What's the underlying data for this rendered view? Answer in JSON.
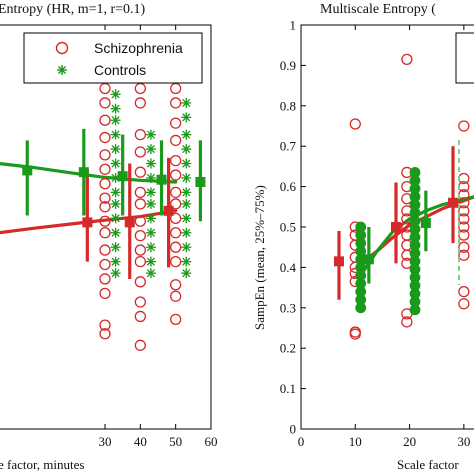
{
  "colors": {
    "schizophrenia": "#d62a2a",
    "controls": "#1a9a1a",
    "axis": "#000000"
  },
  "chart_data": [
    {
      "type": "scatter",
      "title": "Entropy (HR, m=1, r=0.1)",
      "xlabel": "e factor, minutes",
      "ylabel": "",
      "xlim": [
        0,
        60
      ],
      "ylim": [
        0.1,
        0.8
      ],
      "xticks": [
        30,
        40,
        50,
        60
      ],
      "legend": {
        "placement": "top-right",
        "entries": [
          "Schizophrenia",
          "Controls"
        ]
      },
      "series": [
        {
          "name": "Schizophrenia",
          "marker": "circle",
          "points": [
            {
              "x": 30,
              "y": 0.69
            },
            {
              "x": 30,
              "y": 0.665
            },
            {
              "x": 30,
              "y": 0.635
            },
            {
              "x": 30,
              "y": 0.605
            },
            {
              "x": 30,
              "y": 0.575
            },
            {
              "x": 30,
              "y": 0.55
            },
            {
              "x": 30,
              "y": 0.525
            },
            {
              "x": 30,
              "y": 0.5
            },
            {
              "x": 30,
              "y": 0.485
            },
            {
              "x": 30,
              "y": 0.46
            },
            {
              "x": 30,
              "y": 0.44
            },
            {
              "x": 30,
              "y": 0.41
            },
            {
              "x": 30,
              "y": 0.385
            },
            {
              "x": 30,
              "y": 0.36
            },
            {
              "x": 30,
              "y": 0.335
            },
            {
              "x": 30,
              "y": 0.28
            },
            {
              "x": 30,
              "y": 0.265
            },
            {
              "x": 40,
              "y": 0.69
            },
            {
              "x": 40,
              "y": 0.665
            },
            {
              "x": 40,
              "y": 0.61
            },
            {
              "x": 40,
              "y": 0.58
            },
            {
              "x": 40,
              "y": 0.545
            },
            {
              "x": 40,
              "y": 0.51
            },
            {
              "x": 40,
              "y": 0.49
            },
            {
              "x": 40,
              "y": 0.46
            },
            {
              "x": 40,
              "y": 0.435
            },
            {
              "x": 40,
              "y": 0.41
            },
            {
              "x": 40,
              "y": 0.39
            },
            {
              "x": 40,
              "y": 0.355
            },
            {
              "x": 40,
              "y": 0.32
            },
            {
              "x": 40,
              "y": 0.295
            },
            {
              "x": 40,
              "y": 0.245
            },
            {
              "x": 50,
              "y": 0.69
            },
            {
              "x": 50,
              "y": 0.665
            },
            {
              "x": 50,
              "y": 0.63
            },
            {
              "x": 50,
              "y": 0.6
            },
            {
              "x": 50,
              "y": 0.565
            },
            {
              "x": 50,
              "y": 0.54
            },
            {
              "x": 50,
              "y": 0.51
            },
            {
              "x": 50,
              "y": 0.49
            },
            {
              "x": 50,
              "y": 0.465
            },
            {
              "x": 50,
              "y": 0.44
            },
            {
              "x": 50,
              "y": 0.415
            },
            {
              "x": 50,
              "y": 0.39
            },
            {
              "x": 50,
              "y": 0.35
            },
            {
              "x": 50,
              "y": 0.33
            },
            {
              "x": 50,
              "y": 0.29
            }
          ],
          "summary": [
            {
              "x": 25,
              "y": 0.458,
              "low": 0.39,
              "high": 0.55
            },
            {
              "x": 37,
              "y": 0.458,
              "low": 0.36,
              "high": 0.56
            },
            {
              "x": 48,
              "y": 0.478,
              "low": 0.38,
              "high": 0.57
            }
          ],
          "trend": [
            [
              0,
              0.44
            ],
            [
              10,
              0.448
            ],
            [
              20,
              0.455
            ],
            [
              30,
              0.462
            ],
            [
              40,
              0.468
            ],
            [
              50,
              0.478
            ]
          ]
        },
        {
          "name": "Controls",
          "marker": "asterisk",
          "points": [
            {
              "x": 33,
              "y": 0.68
            },
            {
              "x": 33,
              "y": 0.655
            },
            {
              "x": 33,
              "y": 0.635
            },
            {
              "x": 33,
              "y": 0.61
            },
            {
              "x": 33,
              "y": 0.585
            },
            {
              "x": 33,
              "y": 0.56
            },
            {
              "x": 33,
              "y": 0.535
            },
            {
              "x": 33,
              "y": 0.51
            },
            {
              "x": 33,
              "y": 0.49
            },
            {
              "x": 33,
              "y": 0.465
            },
            {
              "x": 33,
              "y": 0.44
            },
            {
              "x": 33,
              "y": 0.415
            },
            {
              "x": 33,
              "y": 0.39
            },
            {
              "x": 33,
              "y": 0.37
            },
            {
              "x": 43,
              "y": 0.61
            },
            {
              "x": 43,
              "y": 0.585
            },
            {
              "x": 43,
              "y": 0.56
            },
            {
              "x": 43,
              "y": 0.535
            },
            {
              "x": 43,
              "y": 0.51
            },
            {
              "x": 43,
              "y": 0.49
            },
            {
              "x": 43,
              "y": 0.465
            },
            {
              "x": 43,
              "y": 0.44
            },
            {
              "x": 43,
              "y": 0.415
            },
            {
              "x": 43,
              "y": 0.39
            },
            {
              "x": 43,
              "y": 0.37
            },
            {
              "x": 53,
              "y": 0.665
            },
            {
              "x": 53,
              "y": 0.64
            },
            {
              "x": 53,
              "y": 0.61
            },
            {
              "x": 53,
              "y": 0.585
            },
            {
              "x": 53,
              "y": 0.56
            },
            {
              "x": 53,
              "y": 0.535
            },
            {
              "x": 53,
              "y": 0.51
            },
            {
              "x": 53,
              "y": 0.49
            },
            {
              "x": 53,
              "y": 0.465
            },
            {
              "x": 53,
              "y": 0.44
            },
            {
              "x": 53,
              "y": 0.415
            },
            {
              "x": 53,
              "y": 0.39
            },
            {
              "x": 53,
              "y": 0.37
            }
          ],
          "summary": [
            {
              "x": 8,
              "y": 0.548,
              "low": 0.47,
              "high": 0.6
            },
            {
              "x": 24,
              "y": 0.545,
              "low": 0.47,
              "high": 0.62
            },
            {
              "x": 35,
              "y": 0.538,
              "low": 0.47,
              "high": 0.61
            },
            {
              "x": 46,
              "y": 0.532,
              "low": 0.47,
              "high": 0.6
            },
            {
              "x": 57,
              "y": 0.528,
              "low": 0.46,
              "high": 0.6
            }
          ],
          "trend": [
            [
              0,
              0.56
            ],
            [
              10,
              0.553
            ],
            [
              20,
              0.544
            ],
            [
              30,
              0.536
            ],
            [
              40,
              0.531
            ],
            [
              50,
              0.528
            ]
          ]
        }
      ]
    },
    {
      "type": "scatter",
      "title": "Multiscale Entropy (",
      "xlabel": "Scale factor",
      "ylabel": "SampEn (mean, 25%–75%)",
      "xlim": [
        0,
        35
      ],
      "ylim": [
        0,
        1
      ],
      "xticks": [
        0,
        10,
        20,
        30
      ],
      "yticks": [
        0,
        0.1,
        0.2,
        0.3,
        0.4,
        0.5,
        0.6,
        0.7,
        0.8,
        0.9,
        1
      ],
      "series": [
        {
          "name": "Schizophrenia",
          "marker": "circle",
          "points": [
            {
              "x": 10,
              "y": 0.755
            },
            {
              "x": 10,
              "y": 0.5
            },
            {
              "x": 10,
              "y": 0.48
            },
            {
              "x": 10,
              "y": 0.455
            },
            {
              "x": 10,
              "y": 0.425
            },
            {
              "x": 10,
              "y": 0.4
            },
            {
              "x": 10,
              "y": 0.385
            },
            {
              "x": 10,
              "y": 0.365
            },
            {
              "x": 10,
              "y": 0.24
            },
            {
              "x": 10,
              "y": 0.235
            },
            {
              "x": 19.5,
              "y": 0.915
            },
            {
              "x": 19.5,
              "y": 0.635
            },
            {
              "x": 19.5,
              "y": 0.6
            },
            {
              "x": 19.5,
              "y": 0.57
            },
            {
              "x": 19.5,
              "y": 0.54
            },
            {
              "x": 19.5,
              "y": 0.52
            },
            {
              "x": 19.5,
              "y": 0.5
            },
            {
              "x": 19.5,
              "y": 0.48
            },
            {
              "x": 19.5,
              "y": 0.455
            },
            {
              "x": 19.5,
              "y": 0.43
            },
            {
              "x": 19.5,
              "y": 0.41
            },
            {
              "x": 19.5,
              "y": 0.285
            },
            {
              "x": 19.5,
              "y": 0.265
            },
            {
              "x": 30,
              "y": 0.75
            },
            {
              "x": 30,
              "y": 0.62
            },
            {
              "x": 30,
              "y": 0.6
            },
            {
              "x": 30,
              "y": 0.58
            },
            {
              "x": 30,
              "y": 0.56
            },
            {
              "x": 30,
              "y": 0.54
            },
            {
              "x": 30,
              "y": 0.52
            },
            {
              "x": 30,
              "y": 0.5
            },
            {
              "x": 30,
              "y": 0.48
            },
            {
              "x": 30,
              "y": 0.45
            },
            {
              "x": 30,
              "y": 0.43
            },
            {
              "x": 30,
              "y": 0.34
            },
            {
              "x": 30,
              "y": 0.31
            }
          ],
          "summary": [
            {
              "x": 7,
              "y": 0.415,
              "low": 0.32,
              "high": 0.49
            },
            {
              "x": 17.5,
              "y": 0.5,
              "low": 0.41,
              "high": 0.61
            },
            {
              "x": 28,
              "y": 0.56,
              "low": 0.46,
              "high": 0.7
            }
          ],
          "trend": [
            [
              11,
              0.41
            ],
            [
              14,
              0.44
            ],
            [
              17,
              0.475
            ],
            [
              20,
              0.505
            ],
            [
              23,
              0.525
            ],
            [
              26,
              0.545
            ],
            [
              29,
              0.56
            ],
            [
              32,
              0.575
            ]
          ]
        },
        {
          "name": "Controls",
          "marker": "filled-circle",
          "points": [
            {
              "x": 11,
              "y": 0.5
            },
            {
              "x": 11,
              "y": 0.48
            },
            {
              "x": 11,
              "y": 0.46
            },
            {
              "x": 11,
              "y": 0.44
            },
            {
              "x": 11,
              "y": 0.42
            },
            {
              "x": 11,
              "y": 0.4
            },
            {
              "x": 11,
              "y": 0.38
            },
            {
              "x": 11,
              "y": 0.36
            },
            {
              "x": 11,
              "y": 0.34
            },
            {
              "x": 11,
              "y": 0.32
            },
            {
              "x": 11,
              "y": 0.3
            },
            {
              "x": 21,
              "y": 0.635
            },
            {
              "x": 21,
              "y": 0.615
            },
            {
              "x": 21,
              "y": 0.595
            },
            {
              "x": 21,
              "y": 0.575
            },
            {
              "x": 21,
              "y": 0.555
            },
            {
              "x": 21,
              "y": 0.535
            },
            {
              "x": 21,
              "y": 0.515
            },
            {
              "x": 21,
              "y": 0.495
            },
            {
              "x": 21,
              "y": 0.475
            },
            {
              "x": 21,
              "y": 0.455
            },
            {
              "x": 21,
              "y": 0.435
            },
            {
              "x": 21,
              "y": 0.415
            },
            {
              "x": 21,
              "y": 0.395
            },
            {
              "x": 21,
              "y": 0.375
            },
            {
              "x": 21,
              "y": 0.355
            },
            {
              "x": 21,
              "y": 0.335
            },
            {
              "x": 21,
              "y": 0.315
            },
            {
              "x": 21,
              "y": 0.295
            }
          ],
          "summary": [
            {
              "x": 12.5,
              "y": 0.42,
              "low": 0.36,
              "high": 0.5
            },
            {
              "x": 23,
              "y": 0.51,
              "low": 0.44,
              "high": 0.59
            }
          ],
          "trend": [
            [
              11,
              0.38
            ],
            [
              14,
              0.44
            ],
            [
              17,
              0.49
            ],
            [
              20,
              0.52
            ],
            [
              23,
              0.54
            ],
            [
              26,
              0.555
            ],
            [
              29,
              0.565
            ],
            [
              32,
              0.575
            ]
          ]
        }
      ]
    }
  ]
}
